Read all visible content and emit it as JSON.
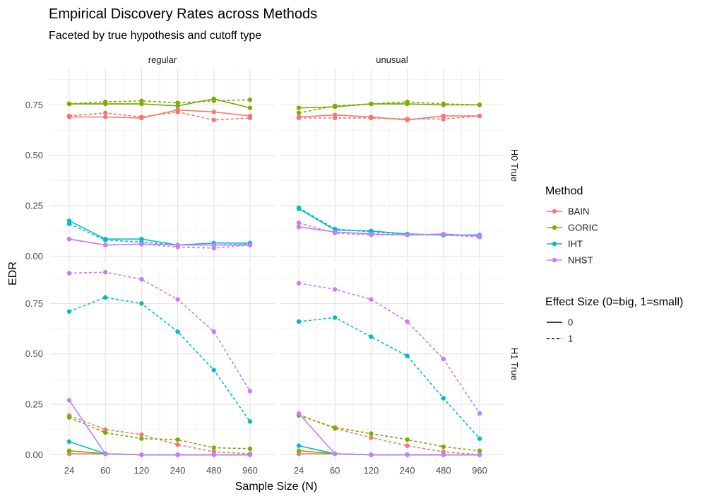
{
  "chart_data": {
    "type": "line",
    "title": "Empirical Discovery Rates across Methods",
    "subtitle": "Faceted by true hypothesis and cutoff type",
    "xlabel": "Sample Size (N)",
    "ylabel": "EDR",
    "x": [
      24,
      60,
      120,
      240,
      480,
      960
    ],
    "x_tick_labels": [
      "24",
      "60",
      "120",
      "240",
      "480",
      "960"
    ],
    "ylim": [
      -0.03,
      0.93
    ],
    "y_ticks": [
      0.0,
      0.25,
      0.5,
      0.75
    ],
    "y_tick_labels": [
      "0.00",
      "0.25",
      "0.50",
      "0.75"
    ],
    "grid": true,
    "legend_placement": "right",
    "facet_columns": [
      "regular",
      "unusual"
    ],
    "facet_rows": [
      "H0 True",
      "H1 True"
    ],
    "colors": {
      "BAIN": "#F8766D",
      "GORIC": "#7CAE00",
      "IHT": "#00BFC4",
      "NHST": "#C77CFF"
    },
    "legend": {
      "method_title": "Method",
      "methods": [
        "BAIN",
        "GORIC",
        "IHT",
        "NHST"
      ],
      "effect_title": "Effect Size (0=big, 1=small)",
      "effects": [
        {
          "label": "0",
          "dash": "solid"
        },
        {
          "label": "1",
          "dash": "dashed"
        }
      ]
    },
    "panels": [
      {
        "row": "H0 True",
        "col": "regular",
        "series": [
          {
            "method": "BAIN",
            "effect": "0",
            "values": [
              0.69,
              0.69,
              0.685,
              0.725,
              0.715,
              0.695
            ]
          },
          {
            "method": "BAIN",
            "effect": "1",
            "values": [
              0.695,
              0.71,
              0.69,
              0.715,
              0.675,
              0.685
            ]
          },
          {
            "method": "GORIC",
            "effect": "0",
            "values": [
              0.755,
              0.755,
              0.755,
              0.745,
              0.78,
              0.735
            ]
          },
          {
            "method": "GORIC",
            "effect": "1",
            "values": [
              0.755,
              0.765,
              0.77,
              0.76,
              0.77,
              0.775
            ]
          },
          {
            "method": "IHT",
            "effect": "0",
            "values": [
              0.175,
              0.085,
              0.085,
              0.055,
              0.065,
              0.065
            ]
          },
          {
            "method": "IHT",
            "effect": "1",
            "values": [
              0.16,
              0.08,
              0.07,
              0.055,
              0.055,
              0.06
            ]
          },
          {
            "method": "NHST",
            "effect": "0",
            "values": [
              0.085,
              0.055,
              0.06,
              0.055,
              0.055,
              0.055
            ]
          },
          {
            "method": "NHST",
            "effect": "1",
            "values": [
              0.085,
              0.055,
              0.06,
              0.045,
              0.04,
              0.055
            ]
          }
        ]
      },
      {
        "row": "H0 True",
        "col": "unusual",
        "series": [
          {
            "method": "BAIN",
            "effect": "0",
            "values": [
              0.69,
              0.7,
              0.69,
              0.675,
              0.695,
              0.695
            ]
          },
          {
            "method": "BAIN",
            "effect": "1",
            "values": [
              0.685,
              0.685,
              0.685,
              0.68,
              0.68,
              0.695
            ]
          },
          {
            "method": "GORIC",
            "effect": "0",
            "values": [
              0.735,
              0.74,
              0.755,
              0.755,
              0.75,
              0.75
            ]
          },
          {
            "method": "GORIC",
            "effect": "1",
            "values": [
              0.71,
              0.745,
              0.755,
              0.765,
              0.755,
              0.75
            ]
          },
          {
            "method": "IHT",
            "effect": "0",
            "values": [
              0.235,
              0.13,
              0.125,
              0.11,
              0.105,
              0.105
            ]
          },
          {
            "method": "IHT",
            "effect": "1",
            "values": [
              0.24,
              0.135,
              0.12,
              0.11,
              0.105,
              0.1
            ]
          },
          {
            "method": "NHST",
            "effect": "0",
            "values": [
              0.145,
              0.12,
              0.11,
              0.105,
              0.11,
              0.1
            ]
          },
          {
            "method": "NHST",
            "effect": "1",
            "values": [
              0.165,
              0.115,
              0.105,
              0.105,
              0.105,
              0.095
            ]
          }
        ]
      },
      {
        "row": "H1 True",
        "col": "regular",
        "series": [
          {
            "method": "BAIN",
            "effect": "0",
            "values": [
              0.005,
              0.005,
              0.0,
              0.0,
              0.0,
              0.0
            ]
          },
          {
            "method": "BAIN",
            "effect": "1",
            "values": [
              0.195,
              0.125,
              0.1,
              0.05,
              0.015,
              0.005
            ]
          },
          {
            "method": "GORIC",
            "effect": "0",
            "values": [
              0.02,
              0.005,
              0.0,
              0.0,
              0.0,
              0.0
            ]
          },
          {
            "method": "GORIC",
            "effect": "1",
            "values": [
              0.185,
              0.11,
              0.08,
              0.075,
              0.035,
              0.03
            ]
          },
          {
            "method": "IHT",
            "effect": "0",
            "values": [
              0.065,
              0.005,
              0.0,
              0.0,
              0.0,
              0.0
            ]
          },
          {
            "method": "IHT",
            "effect": "1",
            "values": [
              0.71,
              0.78,
              0.75,
              0.61,
              0.42,
              0.165
            ]
          },
          {
            "method": "NHST",
            "effect": "0",
            "values": [
              0.27,
              0.005,
              0.0,
              0.0,
              0.0,
              0.0
            ]
          },
          {
            "method": "NHST",
            "effect": "1",
            "values": [
              0.9,
              0.905,
              0.87,
              0.77,
              0.61,
              0.315
            ]
          }
        ]
      },
      {
        "row": "H1 True",
        "col": "unusual",
        "series": [
          {
            "method": "BAIN",
            "effect": "0",
            "values": [
              0.005,
              0.005,
              0.0,
              0.0,
              0.0,
              0.0
            ]
          },
          {
            "method": "BAIN",
            "effect": "1",
            "values": [
              0.2,
              0.13,
              0.085,
              0.045,
              0.015,
              0.0
            ]
          },
          {
            "method": "GORIC",
            "effect": "0",
            "values": [
              0.02,
              0.005,
              0.0,
              0.0,
              0.0,
              0.0
            ]
          },
          {
            "method": "GORIC",
            "effect": "1",
            "values": [
              0.195,
              0.135,
              0.105,
              0.075,
              0.04,
              0.02
            ]
          },
          {
            "method": "IHT",
            "effect": "0",
            "values": [
              0.045,
              0.005,
              0.0,
              0.0,
              0.0,
              0.0
            ]
          },
          {
            "method": "IHT",
            "effect": "1",
            "values": [
              0.66,
              0.68,
              0.585,
              0.49,
              0.28,
              0.08
            ]
          },
          {
            "method": "NHST",
            "effect": "0",
            "values": [
              0.205,
              0.005,
              0.0,
              0.0,
              0.0,
              0.0
            ]
          },
          {
            "method": "NHST",
            "effect": "1",
            "values": [
              0.85,
              0.82,
              0.77,
              0.66,
              0.475,
              0.205
            ]
          }
        ]
      }
    ]
  }
}
